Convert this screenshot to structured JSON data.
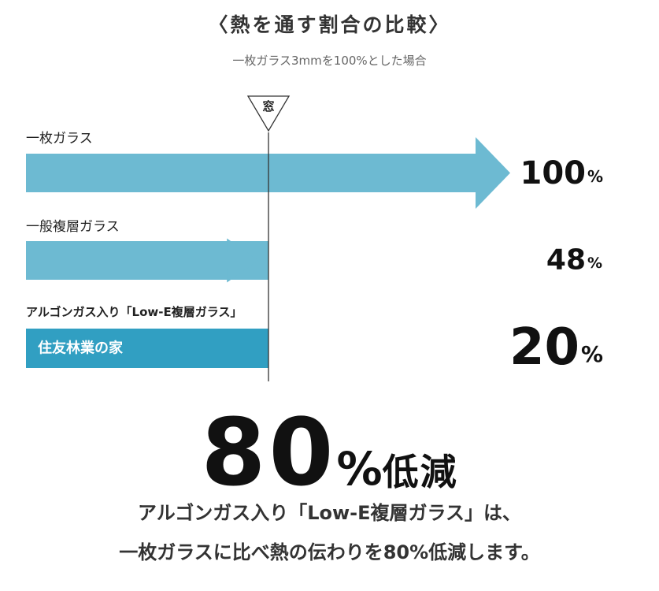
{
  "title": "〈熱を通す割合の比較〉",
  "subtitle": "一枚ガラス3mmを100%とした場合",
  "chart_data": {
    "type": "bar",
    "orientation": "horizontal",
    "categories": [
      "一枚ガラス",
      "一般複層ガラス",
      "アルゴンガス入り「Low-E複層ガラス」"
    ],
    "values": [
      100,
      48,
      20
    ],
    "value_labels": [
      "100",
      "48",
      "20"
    ],
    "unit": "%",
    "inset_label": "住友林業の家",
    "marker_label": "窓",
    "colors": [
      "#6dbad2",
      "#6dbad2",
      "#319fc2"
    ]
  },
  "headline": {
    "number": "80",
    "unit": "%",
    "word": "低減"
  },
  "description": {
    "line1": "アルゴンガス入り「Low-E複層ガラス」は、",
    "line2": "一枚ガラスに比べ熱の伝わりを80%低減します。"
  }
}
